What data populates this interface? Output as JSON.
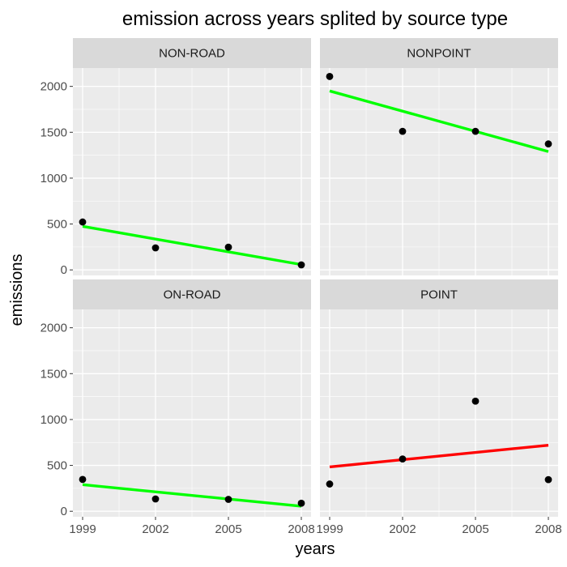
{
  "chart_data": {
    "type": "scatter",
    "title": "emission across years splited by source type",
    "xlabel": "years",
    "ylabel": "emissions",
    "x_ticks": [
      1999,
      2002,
      2005,
      2008
    ],
    "y_ticks": [
      0,
      500,
      1000,
      1500,
      2000
    ],
    "xlim": [
      1998.6,
      2008.4
    ],
    "ylim": [
      -60,
      2200
    ],
    "grid": true,
    "facets": [
      {
        "label": "NON-ROAD",
        "x": [
          1999,
          2002,
          2005,
          2008
        ],
        "y": [
          522,
          240,
          248,
          55
        ],
        "trend": {
          "from": [
            1999,
            475
          ],
          "to": [
            2008,
            58
          ],
          "color": "#00ff00"
        }
      },
      {
        "label": "NONPOINT",
        "x": [
          1999,
          2002,
          2005,
          2008
        ],
        "y": [
          2108,
          1510,
          1510,
          1373
        ],
        "trend": {
          "from": [
            1999,
            1950
          ],
          "to": [
            2008,
            1290
          ],
          "color": "#00ff00"
        }
      },
      {
        "label": "ON-ROAD",
        "x": [
          1999,
          2002,
          2005,
          2008
        ],
        "y": [
          347,
          134,
          130,
          88
        ],
        "trend": {
          "from": [
            1999,
            290
          ],
          "to": [
            2008,
            55
          ],
          "color": "#00ff00"
        }
      },
      {
        "label": "POINT",
        "x": [
          1999,
          2002,
          2005,
          2008
        ],
        "y": [
          297,
          570,
          1200,
          345
        ],
        "trend": {
          "from": [
            1999,
            483
          ],
          "to": [
            2008,
            720
          ],
          "color": "#ff0000"
        }
      }
    ],
    "colors": {
      "panel_bg": "#ebebeb",
      "strip_bg": "#d9d9d9",
      "grid": "#ffffff",
      "point": "#000000"
    }
  }
}
